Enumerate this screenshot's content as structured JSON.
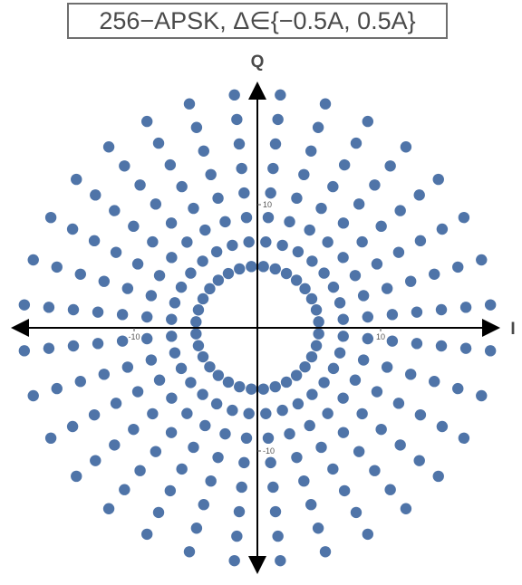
{
  "chart_data": {
    "type": "scatter",
    "title": "256−APSK, Δ∈{−0.5A, 0.5A}",
    "xlabel": "I",
    "ylabel": "Q",
    "xlim": [
      -20,
      20
    ],
    "ylim": [
      -20,
      21
    ],
    "x_ticks": [
      {
        "value": -10,
        "label": "-10"
      },
      {
        "value": 10,
        "label": "10"
      }
    ],
    "y_ticks": [
      {
        "value": 10,
        "label": "10"
      },
      {
        "value": -10,
        "label": "-10"
      }
    ],
    "grid": false,
    "marker_color": "#4f74a8",
    "series": [
      {
        "points_per_ring": 32,
        "ring_radii": [
          5,
          7,
          9,
          11,
          13,
          15,
          17,
          19
        ]
      }
    ]
  }
}
